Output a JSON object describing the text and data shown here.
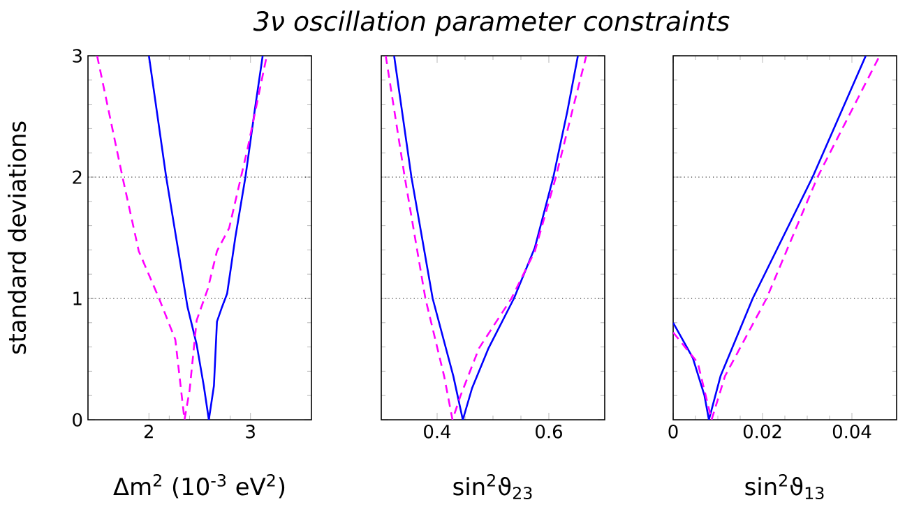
{
  "chart_data": [
    {
      "type": "line",
      "title": "3ν oscillation parameter constraints",
      "xlabel": "Δm$^{2}$ (10$^{-3}$ eV$^{2}$)",
      "ylabel": "standard deviations",
      "xlim": [
        1.4,
        3.6
      ],
      "ylim": [
        0,
        3
      ],
      "xticks": [
        2,
        3
      ],
      "yticks": [
        0,
        1,
        2,
        3
      ],
      "ref_lines": [
        {
          "axis": "y",
          "value": 1,
          "line_style": "dotted"
        },
        {
          "axis": "y",
          "value": 2,
          "line_style": "dotted"
        }
      ],
      "series": [
        {
          "color": "#0000ff",
          "line_style": "solid",
          "x": [
            2.0,
            2.17,
            2.38,
            2.47,
            2.54,
            2.59,
            2.64,
            2.67,
            2.72,
            2.77,
            2.85,
            2.95,
            3.04,
            3.12
          ],
          "values": [
            3,
            2,
            0.93,
            0.62,
            0.28,
            0,
            0.28,
            0.81,
            0.93,
            1.04,
            1.5,
            2,
            2.54,
            3
          ]
        },
        {
          "color": "#ff00ff",
          "line_style": "dashed",
          "x": [
            1.49,
            1.74,
            1.9,
            2.1,
            2.26,
            2.35,
            2.4,
            2.47,
            2.58,
            2.67,
            2.79,
            2.97,
            3.16
          ],
          "values": [
            3,
            2,
            1.39,
            1.0,
            0.66,
            0,
            0.24,
            0.82,
            1.08,
            1.39,
            1.58,
            2.23,
            3
          ]
        }
      ]
    },
    {
      "type": "line",
      "xlabel": "sin$^{2}$ϑ$_{23}$",
      "xlim": [
        0.3,
        0.7
      ],
      "ylim": [
        0,
        3
      ],
      "xticks": [
        0.4,
        0.6
      ],
      "yticks": [
        0,
        1,
        2,
        3
      ],
      "tick_labels": "x",
      "ref_lines": [
        {
          "axis": "y",
          "value": 1,
          "line_style": "dotted"
        },
        {
          "axis": "y",
          "value": 2,
          "line_style": "dotted"
        }
      ],
      "series": [
        {
          "color": "#0000ff",
          "line_style": "solid",
          "x": [
            0.323,
            0.354,
            0.392,
            0.429,
            0.446,
            0.4625,
            0.492,
            0.5375,
            0.575,
            0.608,
            0.633,
            0.652
          ],
          "values": [
            3,
            2,
            1,
            0.36,
            0,
            0.26,
            0.59,
            1,
            1.42,
            2,
            2.54,
            3
          ]
        },
        {
          "color": "#ff00ff",
          "line_style": "dashed",
          "x": [
            0.308,
            0.342,
            0.379,
            0.4125,
            0.4275,
            0.442,
            0.475,
            0.533,
            0.575,
            0.6125,
            0.646,
            0.667
          ],
          "values": [
            3,
            2,
            1,
            0.36,
            0,
            0.2,
            0.59,
            1,
            1.39,
            2,
            2.62,
            3
          ]
        }
      ]
    },
    {
      "type": "line",
      "xlabel": "sin$^{2}$ϑ$_{13}$",
      "xlim": [
        0,
        0.05
      ],
      "ylim": [
        0,
        3
      ],
      "xticks": [
        0,
        0.02,
        0.04
      ],
      "yticks": [
        0,
        1,
        2,
        3
      ],
      "tick_labels": "x",
      "ref_lines": [
        {
          "axis": "y",
          "value": 1,
          "line_style": "dotted"
        },
        {
          "axis": "y",
          "value": 2,
          "line_style": "dotted"
        }
      ],
      "series": [
        {
          "color": "#0000ff",
          "line_style": "solid",
          "x": [
            0,
            0.0044,
            0.007,
            0.008,
            0.0106,
            0.0178,
            0.0312,
            0.0431
          ],
          "values": [
            0.8,
            0.51,
            0.2,
            0,
            0.36,
            1,
            2,
            3
          ]
        },
        {
          "color": "#ff00ff",
          "line_style": "dashed",
          "x": [
            0,
            0.0055,
            0.0086,
            0.0116,
            0.0209,
            0.0323,
            0.0462
          ],
          "values": [
            0.72,
            0.47,
            0,
            0.36,
            1,
            2,
            3
          ]
        }
      ]
    }
  ]
}
